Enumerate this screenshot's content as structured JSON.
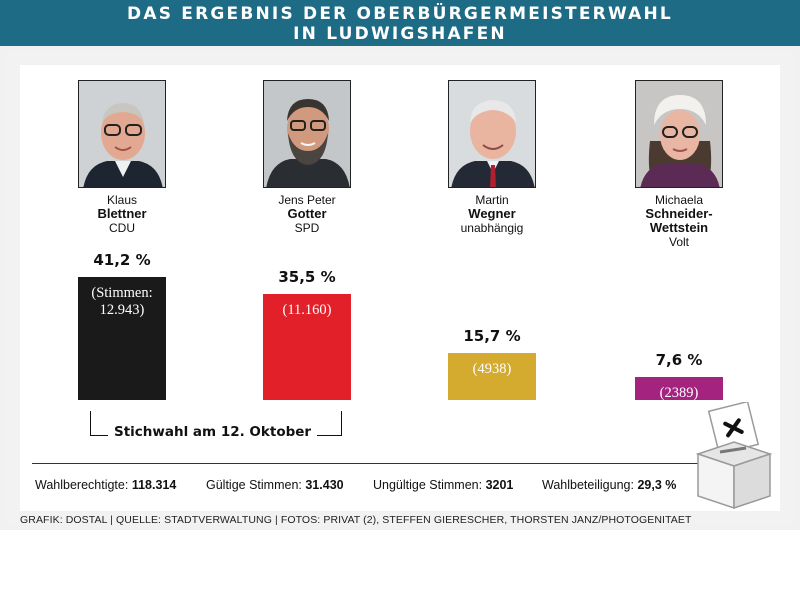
{
  "header": {
    "line1": "DAS ERGEBNIS DER OBERBÜRGERMEISTERWAHL",
    "line2": "IN LUDWIGSHAFEN"
  },
  "candidates": [
    {
      "first": "Klaus",
      "last": "Blettner",
      "last2": "",
      "party": "CDU",
      "pct_label": "41,2 %",
      "votes_label_1": "(Stimmen:",
      "votes_label_2": "12.943)"
    },
    {
      "first": "Jens Peter",
      "last": "Gotter",
      "last2": "",
      "party": "SPD",
      "pct_label": "35,5 %",
      "votes_label_1": "(11.160)",
      "votes_label_2": ""
    },
    {
      "first": "Martin",
      "last": "Wegner",
      "last2": "",
      "party": "unabhängig",
      "pct_label": "15,7 %",
      "votes_label_1": "(4938)",
      "votes_label_2": ""
    },
    {
      "first": "Michaela",
      "last": "Schneider-",
      "last2": "Wettstein",
      "party": "Volt",
      "pct_label": "7,6 %",
      "votes_label_1": "(2389)",
      "votes_label_2": ""
    }
  ],
  "runoff_label": "Stichwahl am 12. Oktober",
  "stats": {
    "eligible_label": "Wahlberechtigte:",
    "eligible_value": "118.314",
    "valid_label": "Gültige Stimmen:",
    "valid_value": "31.430",
    "invalid_label": "Ungültige Stimmen:",
    "invalid_value": "3201",
    "turnout_label": "Wahlbeteiligung:",
    "turnout_value": "29,3 %"
  },
  "credit": "GRAFIK: DOSTAL | QUELLE: STADTVERWALTUNG | FOTOS: PRIVAT (2), STEFFEN GIERESCHER, THORSTEN JANZ/PHOTOGENITAET",
  "colors": {
    "header": "#1e6b86",
    "cdu": "#1a1a1a",
    "spd": "#e2202a",
    "independent": "#d4aa2f",
    "volt": "#a3237f"
  },
  "icons": [
    "portrait-photo",
    "ballot-box-icon"
  ],
  "chart_data": {
    "type": "bar",
    "title": "DAS ERGEBNIS DER OBERBÜRGERMEISTERWAHL IN LUDWIGSHAFEN",
    "xlabel": "",
    "ylabel": "",
    "categories": [
      "Klaus Blettner CDU",
      "Jens Peter Gotter SPD",
      "Martin Wegner unabhängig",
      "Michaela Schneider-Wettstein Volt"
    ],
    "values": [
      41.2,
      35.5,
      15.7,
      7.6
    ],
    "votes": [
      12943,
      11160,
      4938,
      2389
    ],
    "unit": "%",
    "grid": false,
    "colors": [
      "#1a1a1a",
      "#e2202a",
      "#d4aa2f",
      "#a3237f"
    ]
  }
}
